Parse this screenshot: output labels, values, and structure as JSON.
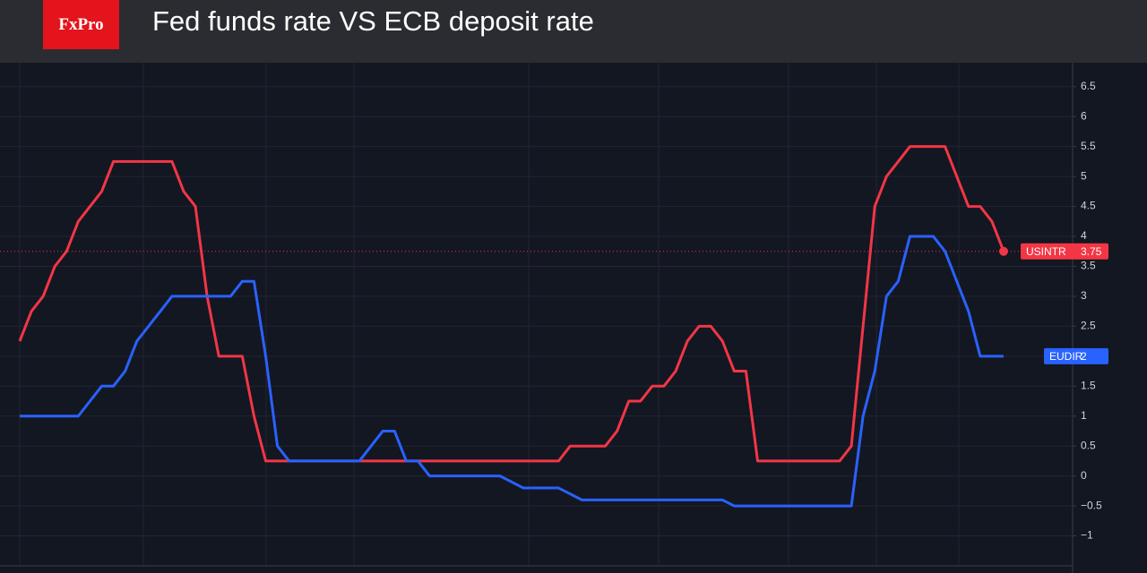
{
  "logo": "FxPro",
  "chart_data": {
    "type": "line",
    "title": "Fed funds rate VS ECB deposit rate",
    "ylim": [
      -1.5,
      6.9
    ],
    "yticks": [
      {
        "value": -1,
        "label": "−1"
      },
      {
        "value": -0.5,
        "label": "−0.5"
      },
      0,
      0.5,
      1,
      1.5,
      2,
      2.5,
      3,
      3.5,
      4,
      4.5,
      5,
      5.5,
      6,
      6.5
    ],
    "grid": true,
    "series": [
      {
        "name": "USINTR",
        "color": "#f23645",
        "values": [
          2.25,
          2.75,
          3.0,
          3.5,
          3.75,
          4.25,
          4.5,
          4.75,
          5.25,
          5.25,
          5.25,
          5.25,
          5.25,
          5.25,
          4.75,
          4.5,
          3.0,
          2.0,
          2.0,
          2.0,
          1.0,
          0.25,
          0.25,
          0.25,
          0.25,
          0.25,
          0.25,
          0.25,
          0.25,
          0.25,
          0.25,
          0.25,
          0.25,
          0.25,
          0.25,
          0.25,
          0.25,
          0.25,
          0.25,
          0.25,
          0.25,
          0.25,
          0.25,
          0.25,
          0.25,
          0.25,
          0.25,
          0.5,
          0.5,
          0.5,
          0.5,
          0.75,
          1.25,
          1.25,
          1.5,
          1.5,
          1.75,
          2.25,
          2.5,
          2.5,
          2.25,
          1.75,
          1.75,
          0.25,
          0.25,
          0.25,
          0.25,
          0.25,
          0.25,
          0.25,
          0.25,
          0.5,
          2.5,
          4.5,
          5.0,
          5.25,
          5.5,
          5.5,
          5.5,
          5.5,
          5.0,
          4.5,
          4.5,
          4.25,
          3.75
        ]
      },
      {
        "name": "EUDIR",
        "color": "#2962ff",
        "values": [
          1.0,
          1.0,
          1.0,
          1.0,
          1.0,
          1.0,
          1.25,
          1.5,
          1.5,
          1.75,
          2.25,
          2.5,
          2.75,
          3.0,
          3.0,
          3.0,
          3.0,
          3.0,
          3.0,
          3.25,
          3.25,
          2.0,
          0.5,
          0.25,
          0.25,
          0.25,
          0.25,
          0.25,
          0.25,
          0.25,
          0.5,
          0.75,
          0.75,
          0.25,
          0.25,
          0,
          0,
          0,
          0,
          0,
          0,
          0,
          -0.1,
          -0.2,
          -0.2,
          -0.2,
          -0.2,
          -0.3,
          -0.4,
          -0.4,
          -0.4,
          -0.4,
          -0.4,
          -0.4,
          -0.4,
          -0.4,
          -0.4,
          -0.4,
          -0.4,
          -0.4,
          -0.4,
          -0.5,
          -0.5,
          -0.5,
          -0.5,
          -0.5,
          -0.5,
          -0.5,
          -0.5,
          -0.5,
          -0.5,
          -0.5,
          1.0,
          1.75,
          3.0,
          3.25,
          4.0,
          4.0,
          4.0,
          3.75,
          3.25,
          2.75,
          2.0,
          2.0,
          2.0
        ]
      }
    ]
  }
}
